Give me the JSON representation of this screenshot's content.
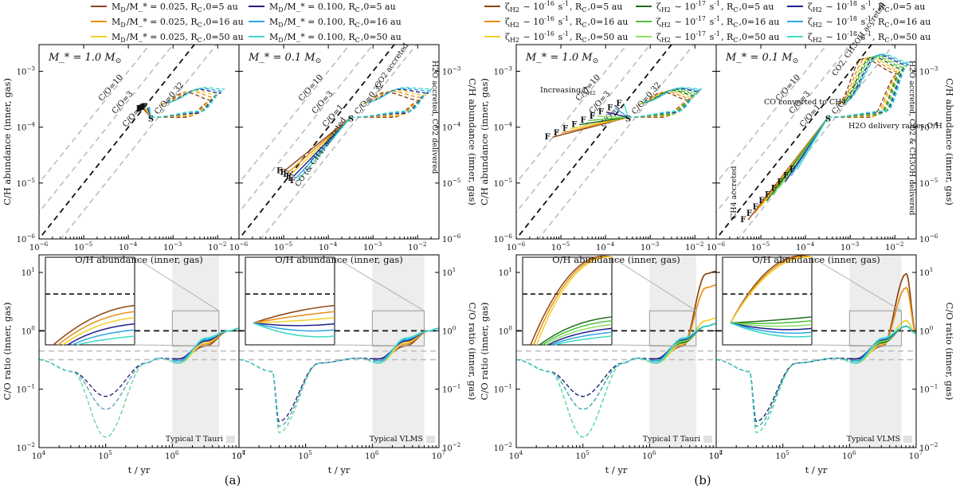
{
  "figure": {
    "sublabels": [
      "(a)",
      "(b)"
    ]
  },
  "chart_data": [
    {
      "id": "a",
      "type": "line",
      "legend": [
        {
          "label": "M_D/M_* = 0.025, R_C,0=5 au",
          "color": "#8B4513"
        },
        {
          "label": "M_D/M_* = 0.025, R_C,0=16 au",
          "color": "#E8901A"
        },
        {
          "label": "M_D/M_* = 0.025, R_C,0=50 au",
          "color": "#F2D027"
        },
        {
          "label": "M_D/M_* = 0.100, R_C,0=5 au",
          "color": "#1F1F8F"
        },
        {
          "label": "M_D/M_* = 0.100, R_C,0=16 au",
          "color": "#2EA6E6"
        },
        {
          "label": "M_D/M_* = 0.100, R_C,0=50 au",
          "color": "#3ED9C8"
        }
      ],
      "top_panels": [
        {
          "title": "M_* = 1.0 M_⊙",
          "xlabel": "O/H abundance (inner, gas)",
          "ylabel": "C/H abundance (inner, gas)",
          "xlim": [
            1e-06,
            0.03
          ],
          "ylim": [
            1e-06,
            0.003
          ],
          "co_lines": [
            {
              "label": "C/O=10",
              "ratio": 10
            },
            {
              "label": "C/O=3",
              "ratio": 3
            },
            {
              "label": "C/O=1",
              "ratio": 1
            },
            {
              "label": "C/O=0.32",
              "ratio": 0.32
            }
          ],
          "markers": {
            "start": "S",
            "end": "F"
          },
          "annotations": []
        },
        {
          "title": "M_* = 0.1 M_⊙",
          "xlabel": "O/H abundance (inner, gas)",
          "ylabel": "C/H abundance (inner, gas)",
          "xlim": [
            1e-06,
            0.03
          ],
          "ylim": [
            1e-06,
            0.003
          ],
          "co_lines": [
            {
              "label": "C/O=10",
              "ratio": 10
            },
            {
              "label": "C/O=3",
              "ratio": 3
            },
            {
              "label": "C/O=1",
              "ratio": 1
            },
            {
              "label": "C/O=0.32",
              "ratio": 0.32
            }
          ],
          "markers": {
            "start": "S",
            "end": "F"
          },
          "annotations": [
            "CO (& CH4) accreted",
            "CO2 accreted",
            "H2O accreted, CO2 delivered"
          ]
        }
      ],
      "bottom_panels": [
        {
          "xlabel": "t / yr",
          "ylabel": "C/O ratio (inner, gas)",
          "xlim": [
            10000.0,
            10000000.0
          ],
          "ylim": [
            0.01,
            20
          ],
          "reference_lines": [
            1.0,
            0.45,
            0.32
          ],
          "shade_label": "Typical T Tauri"
        },
        {
          "xlabel": "t / yr",
          "ylabel": "C/O ratio (inner, gas)",
          "xlim": [
            10000.0,
            10000000.0
          ],
          "ylim": [
            0.01,
            20
          ],
          "reference_lines": [
            1.0,
            0.45,
            0.32
          ],
          "shade_label": "Typical VLMS"
        }
      ]
    },
    {
      "id": "b",
      "type": "line",
      "legend": [
        {
          "label": "ζ_H2 ∼ 10^-16 s^-1, R_C,0=5 au",
          "color": "#8B4513"
        },
        {
          "label": "ζ_H2 ∼ 10^-16 s^-1, R_C,0=16 au",
          "color": "#E8901A"
        },
        {
          "label": "ζ_H2 ∼ 10^-16 s^-1, R_C,0=50 au",
          "color": "#F2D027"
        },
        {
          "label": "ζ_H2 ∼ 10^-17 s^-1, R_C,0=5 au",
          "color": "#1E6B1E"
        },
        {
          "label": "ζ_H2 ∼ 10^-17 s^-1, R_C,0=16 au",
          "color": "#4CC23A"
        },
        {
          "label": "ζ_H2 ∼ 10^-17 s^-1, R_C,0=50 au",
          "color": "#8EE060"
        },
        {
          "label": "ζ_H2 ∼ 10^-18 s^-1, R_C,0=5 au",
          "color": "#1F1F8F"
        },
        {
          "label": "ζ_H2 ∼ 10^-18 s^-1, R_C,0=16 au",
          "color": "#2EA6E6"
        },
        {
          "label": "ζ_H2 ∼ 10^-18 s^-1, R_C,0=50 au",
          "color": "#3ED9C8"
        }
      ],
      "top_panels": [
        {
          "title": "M_* = 1.0 M_⊙",
          "xlabel": "O/H abundance (inner, gas)",
          "ylabel": "C/H abundance (inner, gas)",
          "xlim": [
            1e-06,
            0.03
          ],
          "ylim": [
            1e-06,
            0.003
          ],
          "co_lines": [
            {
              "label": "C/O=10",
              "ratio": 10
            },
            {
              "label": "C/O=3",
              "ratio": 3
            },
            {
              "label": "C/O=1",
              "ratio": 1
            },
            {
              "label": "C/O=0.32",
              "ratio": 0.32
            }
          ],
          "markers": {
            "start": "S",
            "end": "F"
          },
          "annotations": [
            "Increasing ζ_H2"
          ]
        },
        {
          "title": "M_* = 0.1 M_⊙",
          "xlabel": "O/H abundance (inner, gas)",
          "ylabel": "C/H abundance (inner, gas)",
          "xlim": [
            1e-06,
            0.03
          ],
          "ylim": [
            1e-06,
            0.003
          ],
          "co_lines": [
            {
              "label": "C/O=10",
              "ratio": 10
            },
            {
              "label": "C/O=3",
              "ratio": 3
            },
            {
              "label": "C/O=1",
              "ratio": 1
            },
            {
              "label": "C/O=0.32",
              "ratio": 0.32
            }
          ],
          "markers": {
            "start": "S",
            "end": "F"
          },
          "annotations": [
            "CO converted to CH4",
            "H2O delivery raises O/H",
            "CH4 accreted",
            "CO2, CH3OH accreted",
            "H2O accreted, CO2 & CH3OH delivered"
          ]
        }
      ],
      "bottom_panels": [
        {
          "xlabel": "t / yr",
          "ylabel": "C/O ratio (inner, gas)",
          "xlim": [
            10000.0,
            10000000.0
          ],
          "ylim": [
            0.01,
            20
          ],
          "reference_lines": [
            1.0,
            0.45,
            0.32
          ],
          "shade_label": "Typical T Tauri"
        },
        {
          "xlabel": "t / yr",
          "ylabel": "C/O ratio (inner, gas)",
          "xlim": [
            10000.0,
            10000000.0
          ],
          "ylim": [
            0.01,
            20
          ],
          "reference_lines": [
            1.0,
            0.45,
            0.32
          ],
          "shade_label": "Typical VLMS"
        }
      ]
    }
  ]
}
